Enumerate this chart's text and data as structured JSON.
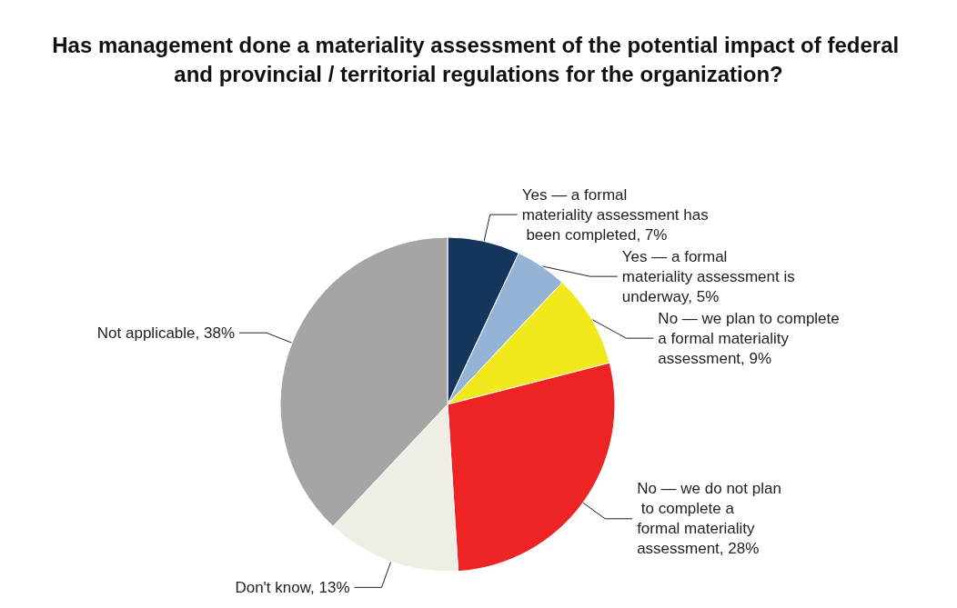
{
  "chart_data": {
    "type": "pie",
    "title": "Has management done a materiality assessment of the potential impact of federal and provincial / territorial regulations for the organization?",
    "categories": [
      "Yes — a formal materiality assessment has been completed",
      "Yes — a formal materiality assessment is underway",
      "No — we plan to complete a formal materiality assessment",
      "No — we do not plan to complete a formal materiality assessment",
      "Don't know",
      "Not applicable"
    ],
    "values": [
      7,
      5,
      9,
      28,
      13,
      38
    ],
    "value_labels": [
      "7%",
      "5%",
      "9%",
      "28%",
      "13%",
      "38%"
    ],
    "colors": [
      "#14365d",
      "#95b3d7",
      "#f1e91c",
      "#ee2424",
      "#eeeee4",
      "#a6a5a3"
    ],
    "data_labels": true,
    "legend": false
  }
}
